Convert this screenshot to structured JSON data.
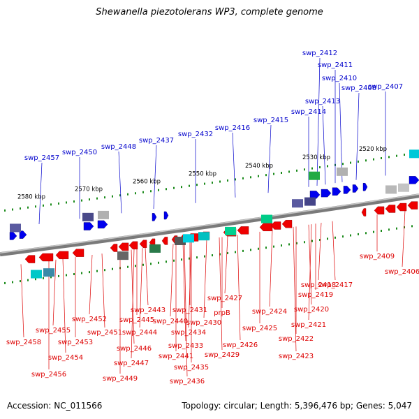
{
  "title": "Shewanella piezotolerans WP3, complete genome",
  "accession": "Accession: NC_011566",
  "summary": "Topology: circular; Length: 5,396,476 bp; Genes: 5,047",
  "colors": {
    "forward_label": "#0000cc",
    "reverse_label": "#dd0000",
    "forward_gene": "#0000ee",
    "reverse_gene": "#ee0000",
    "backbone": "#7a7a7a",
    "tick": "#1a8a1a"
  },
  "scale_labels": [
    "2580 kbp",
    "2570 kbp",
    "2560 kbp",
    "2550 kbp",
    "2540 kbp",
    "2530 kbp",
    "2520 kbp"
  ],
  "forward_genes": [
    "swp_2457",
    "swp_2450",
    "swp_2448",
    "swp_2437",
    "swp_2432",
    "swp_2416",
    "swp_2415",
    "swp_2414",
    "swp_2413",
    "swp_2412",
    "swp_2411",
    "swp_2410",
    "swp_2408",
    "swp_2407"
  ],
  "reverse_genes": [
    "swp_2458",
    "swp_2456",
    "swp_2455",
    "swp_2454",
    "swp_2453",
    "swp_2452",
    "swp_2451",
    "swp_2449",
    "swp_2447",
    "swp_2446",
    "swp_2445",
    "swp_2444",
    "swp_2443",
    "swp_2441",
    "swp_2440",
    "swp_2436",
    "swp_2435",
    "swp_2434",
    "swp_2433",
    "swp_2431",
    "swp_2430",
    "swp_2429",
    "prpB",
    "swp_2427",
    "swp_2426",
    "swp_2425",
    "swp_2424",
    "swp_2423",
    "swp_2422",
    "swp_2421",
    "swp_2420",
    "swp_2419",
    "swp_2418",
    "swp_2417",
    "swp_2409",
    "swp_2406"
  ]
}
